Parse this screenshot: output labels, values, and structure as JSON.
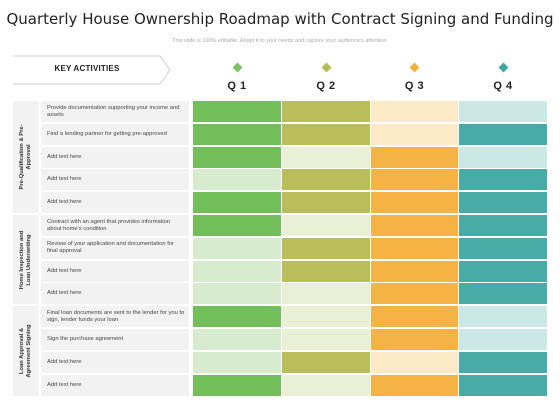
{
  "title": "Quarterly House Ownership Roadmap with Contract Signing and Funding",
  "subtitle": "This slide is 100% editable. Adapt it to your needs and capture your audience's attention.",
  "key_activities_label": "KEY ACTIVITIES",
  "quarters": [
    {
      "label": "Q 1",
      "color": "#7dc35b"
    },
    {
      "label": "Q 2",
      "color": "#b5bf4f"
    },
    {
      "label": "Q 3",
      "color": "#f3b03e"
    },
    {
      "label": "Q 4",
      "color": "#3fa7a2"
    }
  ],
  "palette": {
    "q1": [
      "#72bf5a",
      "#d7ebcf"
    ],
    "q2": [
      "#b7be5a",
      "#eaf0d6"
    ],
    "q3": [
      "#f4b344",
      "#fbe9c8"
    ],
    "q4": [
      "#47aba6",
      "#cbe8e6"
    ]
  },
  "sections": [
    {
      "label_lines": [
        "Pre-Qualification & Pre-",
        "Approval"
      ]
    },
    {
      "label_lines": [
        "Home Inspection and",
        "Loan Underwriting"
      ]
    },
    {
      "label_lines": [
        "Loan Approval &",
        "Agreement Signing"
      ]
    }
  ],
  "rows": [
    {
      "text": "Provide documentation supporting your income and assets",
      "cells": [
        "dark",
        "dark",
        "light",
        "light"
      ]
    },
    {
      "text": "Find a lending partner for getting pre-approved",
      "cells": [
        "dark",
        "dark",
        "light",
        "dark"
      ]
    },
    {
      "text": "Add text here",
      "cells": [
        "dark",
        "light",
        "dark",
        "light"
      ]
    },
    {
      "text": "Add text here",
      "cells": [
        "light",
        "dark",
        "dark",
        "dark"
      ]
    },
    {
      "text": "Add text here",
      "cells": [
        "dark",
        "dark",
        "dark",
        "dark"
      ]
    },
    {
      "text": "Contract with an agent that provides information about home's condition",
      "cells": [
        "dark",
        "light",
        "dark",
        "dark"
      ]
    },
    {
      "text": "Review of your application and documentation for final approval",
      "cells": [
        "light",
        "dark",
        "dark",
        "dark"
      ]
    },
    {
      "text": "Add text here",
      "cells": [
        "light",
        "dark",
        "dark",
        "dark"
      ]
    },
    {
      "text": "Add text here",
      "cells": [
        "light",
        "light",
        "dark",
        "dark"
      ]
    },
    {
      "text": "Final loan documents are sent to the lender for you to sign, lender funds your loan",
      "cells": [
        "dark",
        "light",
        "dark",
        "light"
      ]
    },
    {
      "text": "Sign the purchase agreement",
      "cells": [
        "light",
        "light",
        "dark",
        "light"
      ]
    },
    {
      "text": "Add text here",
      "cells": [
        "light",
        "dark",
        "light",
        "dark"
      ]
    },
    {
      "text": "Add text here",
      "cells": [
        "dark",
        "light",
        "dark",
        "dark"
      ]
    }
  ]
}
